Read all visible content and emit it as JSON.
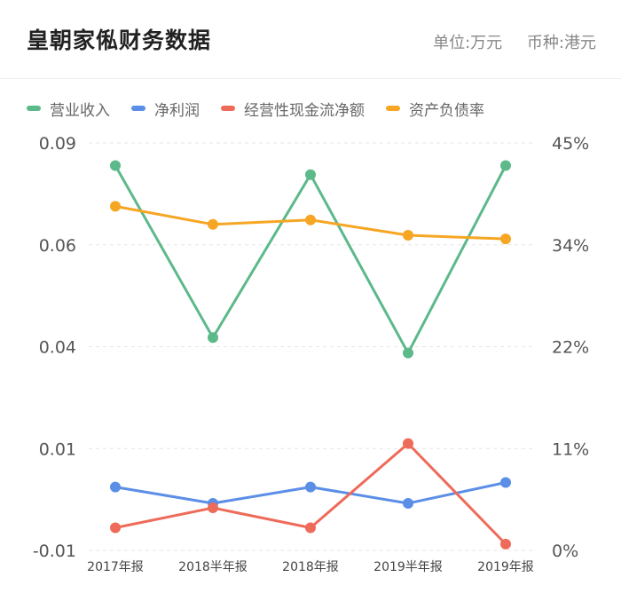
{
  "header": {
    "title": "皇朝家俬财务数据",
    "unit": "单位:万元",
    "currency": "币种:港元"
  },
  "chart_data": {
    "type": "line",
    "categories": [
      "2017年报",
      "2018半年报",
      "2018年报",
      "2019半年报",
      "2019年报"
    ],
    "y_left_ticks": [
      "0.09",
      "0.06",
      "0.04",
      "0.01",
      "-0.01"
    ],
    "y_right_ticks": [
      "45%",
      "34%",
      "22%",
      "11%",
      "0%"
    ],
    "ylim_right": [
      0,
      45
    ],
    "grid": "horizontal dashed",
    "legend_position": "top-left",
    "series": [
      {
        "name": "营业收入",
        "axis": "right",
        "color": "#5cb98a",
        "values": [
          42.5,
          23.5,
          41.5,
          21.8,
          42.5
        ]
      },
      {
        "name": "净利润",
        "axis": "right",
        "color": "#5b8ee6",
        "values": [
          7.0,
          5.2,
          7.0,
          5.2,
          7.5
        ]
      },
      {
        "name": "经营性现金流净额",
        "axis": "right",
        "color": "#ee6b5a",
        "values": [
          2.5,
          4.7,
          2.5,
          11.8,
          0.7
        ]
      },
      {
        "name": "资产负债率",
        "axis": "right",
        "color": "#f6a623",
        "values": [
          38.0,
          36.0,
          36.5,
          34.8,
          34.4
        ]
      }
    ]
  }
}
